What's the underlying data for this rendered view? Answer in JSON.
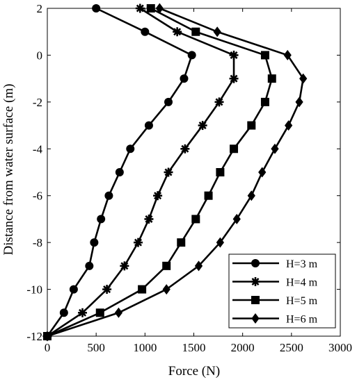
{
  "chart_data": {
    "type": "line",
    "title": "",
    "xlabel": "Force (N)",
    "ylabel": "Distance from water surface (m)",
    "xlim": [
      0,
      3000
    ],
    "ylim": [
      -12,
      2
    ],
    "xticks": [
      "0",
      "500",
      "1000",
      "1500",
      "2000",
      "2500",
      "3000"
    ],
    "yticks": [
      "2",
      "0",
      "-2",
      "-4",
      "-6",
      "-8",
      "-10",
      "-12"
    ],
    "grid": false,
    "legend_position": "bottom-right",
    "y": [
      2,
      1,
      0,
      -1,
      -2,
      -3,
      -4,
      -5,
      -6,
      -7,
      -8,
      -9,
      -10,
      -11,
      -12
    ],
    "series": [
      {
        "name": "H=3 m",
        "marker": "circle",
        "values": [
          500,
          1000,
          1480,
          1400,
          1240,
          1040,
          850,
          740,
          630,
          550,
          480,
          430,
          270,
          170,
          0
        ]
      },
      {
        "name": "H=4 m",
        "marker": "asterisk",
        "values": [
          950,
          1330,
          1910,
          1910,
          1760,
          1590,
          1410,
          1240,
          1130,
          1040,
          930,
          790,
          610,
          360,
          0
        ]
      },
      {
        "name": "H=5 m",
        "marker": "square",
        "values": [
          1060,
          1520,
          2230,
          2300,
          2230,
          2090,
          1910,
          1770,
          1650,
          1520,
          1370,
          1220,
          970,
          540,
          0
        ]
      },
      {
        "name": "H=6 m",
        "marker": "diamond",
        "values": [
          1150,
          1740,
          2460,
          2620,
          2580,
          2470,
          2330,
          2200,
          2090,
          1940,
          1770,
          1550,
          1220,
          730,
          0
        ]
      }
    ]
  }
}
